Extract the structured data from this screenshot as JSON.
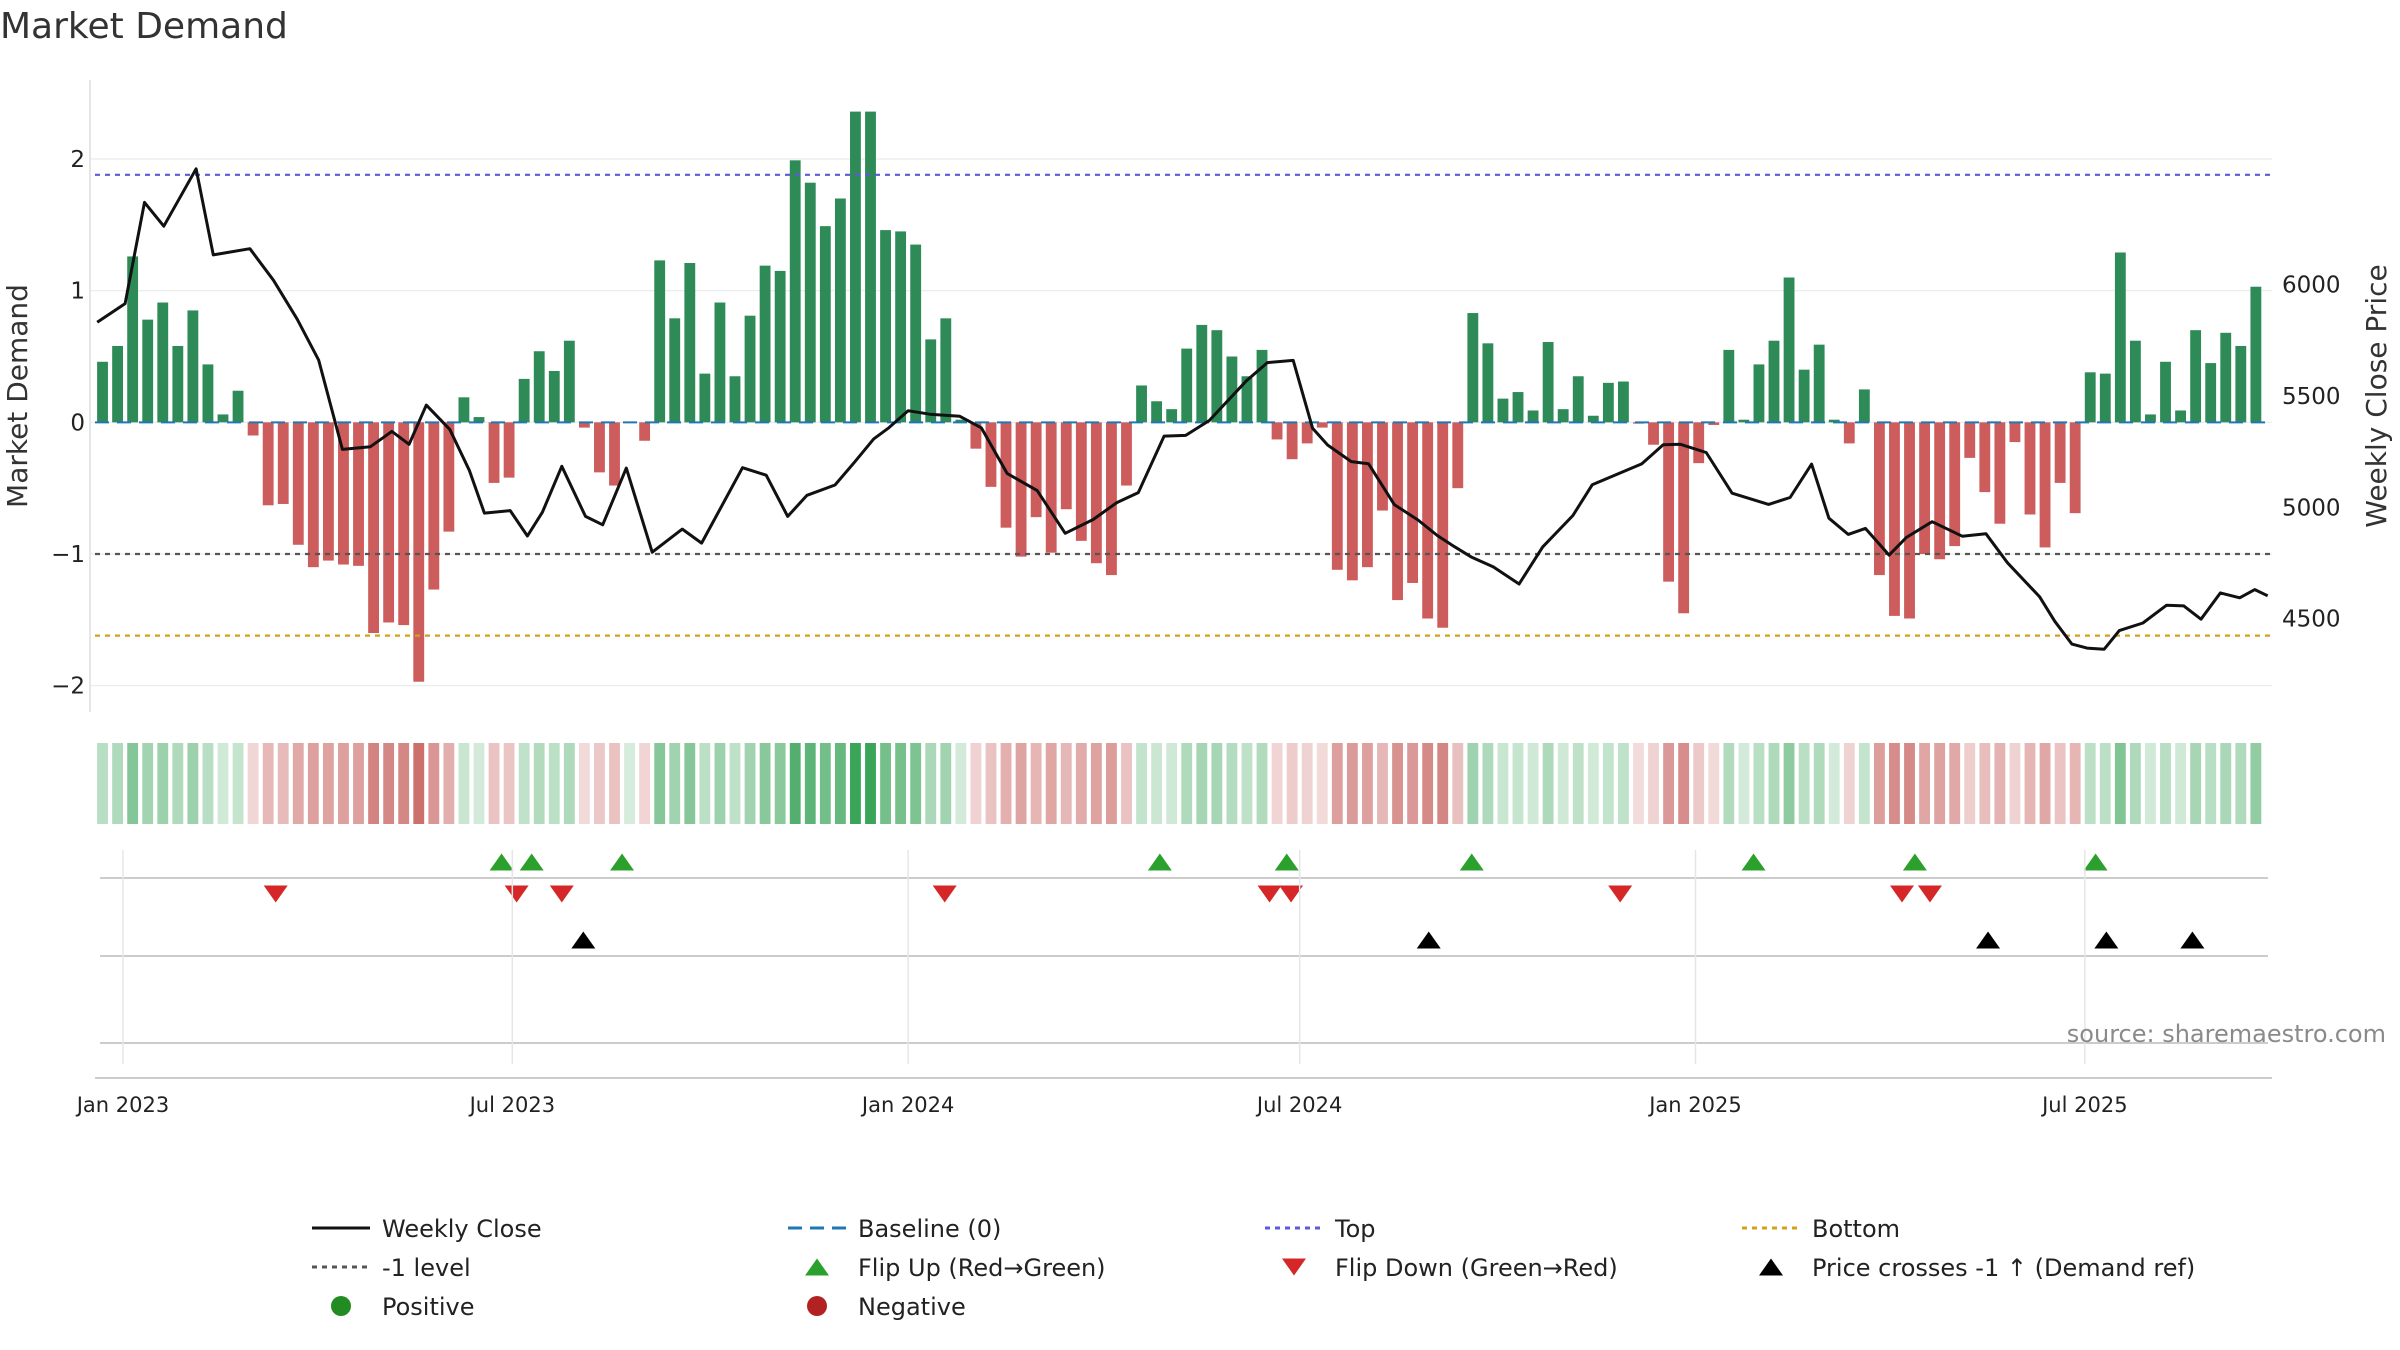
{
  "chart_data": {
    "type": "bar+line",
    "title": "Market Demand",
    "ylabel_left": "Market Demand",
    "ylabel_right": "Weekly Close Price",
    "left_ylim": [
      -2.2,
      2.6
    ],
    "left_yticks": [
      -2,
      -1,
      0,
      1,
      2
    ],
    "left_ytick_labels": [
      "−2",
      "−1",
      "0",
      "1",
      "2"
    ],
    "right_ylim": [
      4080,
      6920
    ],
    "right_yticks": [
      4500,
      5000,
      5500,
      6000
    ],
    "right_ytick_labels": [
      "4500",
      "5000",
      "5500",
      "6000"
    ],
    "x_start": "2022-12-19",
    "x_end": "2025-09-26",
    "xtick_dates": [
      "2023-01-01",
      "2023-07-01",
      "2024-01-01",
      "2024-07-01",
      "2025-01-01",
      "2025-07-01"
    ],
    "xtick_labels": [
      "Jan 2023",
      "Jul 2023",
      "Jan 2024",
      "Jul 2024",
      "Jan 2025",
      "Jul 2025"
    ],
    "weeks_start": "2022-12-19",
    "demand_values": [
      0.46,
      0.58,
      1.26,
      0.78,
      0.91,
      0.58,
      0.85,
      0.44,
      0.06,
      0.24,
      -0.1,
      -0.63,
      -0.62,
      -0.93,
      -1.1,
      -1.05,
      -1.08,
      -1.09,
      -1.6,
      -1.52,
      -1.54,
      -1.97,
      -1.27,
      -0.83,
      0.19,
      0.04,
      -0.46,
      -0.42,
      0.33,
      0.54,
      0.39,
      0.62,
      -0.04,
      -0.38,
      -0.48,
      0.0,
      -0.14,
      1.23,
      0.79,
      1.21,
      0.37,
      0.91,
      0.35,
      0.81,
      1.19,
      1.15,
      1.99,
      1.82,
      1.49,
      1.7,
      2.36,
      2.36,
      1.46,
      1.45,
      1.35,
      0.63,
      0.79,
      0.02,
      -0.2,
      -0.49,
      -0.8,
      -1.02,
      -0.72,
      -0.99,
      -0.66,
      -0.9,
      -1.07,
      -1.16,
      -0.48,
      0.28,
      0.16,
      0.1,
      0.56,
      0.74,
      0.7,
      0.5,
      0.35,
      0.55,
      -0.13,
      -0.28,
      -0.16,
      -0.04,
      -1.12,
      -1.2,
      -1.1,
      -0.67,
      -1.35,
      -1.22,
      -1.49,
      -1.56,
      -0.5,
      0.83,
      0.6,
      0.18,
      0.23,
      0.09,
      0.61,
      0.1,
      0.35,
      0.05,
      0.3,
      0.31,
      -0.01,
      -0.17,
      -1.21,
      -1.45,
      -0.31,
      -0.02,
      0.55,
      0.02,
      0.44,
      0.62,
      1.1,
      0.4,
      0.59,
      0.02,
      -0.16,
      0.25,
      -1.16,
      -1.47,
      -1.49,
      -1.0,
      -1.04,
      -0.94,
      -0.27,
      -0.53,
      -0.77,
      -0.15,
      -0.7,
      -0.95,
      -0.46,
      -0.69,
      0.38,
      0.37,
      1.29,
      0.62,
      0.06,
      0.46,
      0.09,
      0.7,
      0.45,
      0.68,
      0.58,
      1.03
    ],
    "series": [
      {
        "name": "Market Demand",
        "kind": "bar",
        "values_ref": "demand_values"
      },
      {
        "name": "Weekly Close",
        "kind": "line",
        "axis": "right",
        "x_dates": [
          "2022-12-20",
          "2023-01-02",
          "2023-01-11",
          "2023-01-20",
          "2023-02-04",
          "2023-02-12",
          "2023-03-01",
          "2023-03-12",
          "2023-03-23",
          "2023-04-02",
          "2023-04-13",
          "2023-04-26",
          "2023-05-06",
          "2023-05-14",
          "2023-05-22",
          "2023-06-02",
          "2023-06-11",
          "2023-06-18",
          "2023-06-30",
          "2023-07-08",
          "2023-07-15",
          "2023-07-24",
          "2023-08-04",
          "2023-08-12",
          "2023-08-23",
          "2023-09-04",
          "2023-09-18",
          "2023-09-27",
          "2023-10-16",
          "2023-10-27",
          "2023-11-06",
          "2023-11-15",
          "2023-11-28",
          "2023-12-07",
          "2023-12-16",
          "2023-12-23",
          "2024-01-01",
          "2024-01-11",
          "2024-01-25",
          "2024-02-04",
          "2024-02-16",
          "2024-03-01",
          "2024-03-14",
          "2024-03-27",
          "2024-04-07",
          "2024-04-17",
          "2024-04-29",
          "2024-05-09",
          "2024-05-20",
          "2024-06-06",
          "2024-06-16",
          "2024-06-28",
          "2024-07-07",
          "2024-07-14",
          "2024-07-25",
          "2024-08-02",
          "2024-08-14",
          "2024-08-25",
          "2024-09-03",
          "2024-09-11",
          "2024-09-19",
          "2024-09-29",
          "2024-10-11",
          "2024-10-22",
          "2024-11-05",
          "2024-11-14",
          "2024-11-25",
          "2024-12-07",
          "2024-12-17",
          "2024-12-25",
          "2025-01-06",
          "2025-01-18",
          "2025-02-04",
          "2025-02-14",
          "2025-02-24",
          "2025-03-04",
          "2025-03-13",
          "2025-03-21",
          "2025-04-01",
          "2025-04-09",
          "2025-04-21",
          "2025-05-05",
          "2025-05-16",
          "2025-05-26",
          "2025-06-10",
          "2025-06-17",
          "2025-06-25",
          "2025-07-02",
          "2025-07-10",
          "2025-07-17",
          "2025-07-28",
          "2025-08-08",
          "2025-08-16",
          "2025-08-24",
          "2025-09-02",
          "2025-09-11",
          "2025-09-18",
          "2025-09-24"
        ],
        "values": [
          5831,
          5915,
          6370,
          6263,
          6521,
          6134,
          6162,
          6020,
          5845,
          5661,
          5260,
          5272,
          5341,
          5283,
          5459,
          5349,
          5166,
          4974,
          4985,
          4871,
          4978,
          5184,
          4959,
          4921,
          5176,
          4798,
          4902,
          4839,
          5178,
          5144,
          4959,
          5054,
          5100,
          5202,
          5307,
          5357,
          5434,
          5418,
          5409,
          5357,
          5152,
          5075,
          4883,
          4945,
          5021,
          5066,
          5320,
          5323,
          5390,
          5566,
          5650,
          5660,
          5355,
          5280,
          5205,
          5196,
          5012,
          4943,
          4873,
          4823,
          4775,
          4732,
          4655,
          4822,
          4963,
          5101,
          5146,
          5195,
          5281,
          5283,
          5246,
          5063,
          5013,
          5044,
          5194,
          4951,
          4878,
          4905,
          4785,
          4864,
          4935,
          4870,
          4881,
          4751,
          4597,
          4488,
          4385,
          4367,
          4362,
          4446,
          4480,
          4560,
          4557,
          4497,
          4615,
          4593,
          4630,
          4602
        ]
      }
    ],
    "reference_lines": [
      {
        "name": "Baseline (0)",
        "axis": "left",
        "value": 0,
        "color": "#1f77b4",
        "style": "dashed"
      },
      {
        "name": "Top",
        "axis": "left",
        "value": 1.88,
        "color": "#5b5bd6",
        "style": "dotted"
      },
      {
        "name": "-1 level",
        "axis": "left",
        "value": -1,
        "color": "#555555",
        "style": "dotted"
      },
      {
        "name": "Bottom",
        "axis": "left",
        "value": -1.62,
        "color": "#d4a017",
        "style": "dotted"
      }
    ],
    "flip_up_dates": [
      "2023-06-26",
      "2023-07-10",
      "2023-08-21",
      "2024-04-27",
      "2024-06-25",
      "2024-09-19",
      "2025-01-28",
      "2025-04-13",
      "2025-07-06"
    ],
    "flip_down_dates": [
      "2023-03-13",
      "2023-07-03",
      "2023-07-24",
      "2024-01-18",
      "2024-06-17",
      "2024-06-27",
      "2024-11-27",
      "2025-04-07",
      "2025-04-20"
    ],
    "price_cross_dates": [
      "2023-08-03",
      "2024-08-30",
      "2025-05-17",
      "2025-07-11",
      "2025-08-20"
    ],
    "legend": [
      {
        "label": "Weekly Close",
        "kind": "line-solid",
        "color": "#111111"
      },
      {
        "label": "Baseline (0)",
        "kind": "line-dashed",
        "color": "#1f77b4"
      },
      {
        "label": "Top",
        "kind": "line-dotted",
        "color": "#5b5bd6"
      },
      {
        "label": "Bottom",
        "kind": "line-dotted",
        "color": "#d4a017"
      },
      {
        "label": "-1 level",
        "kind": "line-dotted",
        "color": "#555555"
      },
      {
        "label": "Flip Up (Red→Green)",
        "kind": "triangle-up",
        "color": "#2ca02c"
      },
      {
        "label": "Flip Down (Green→Red)",
        "kind": "triangle-down",
        "color": "#d62728"
      },
      {
        "label": "Price crosses -1 ↑ (Demand ref)",
        "kind": "triangle-up",
        "color": "#000000"
      },
      {
        "label": "Positive",
        "kind": "circle",
        "color": "#228b22"
      },
      {
        "label": "Negative",
        "kind": "circle",
        "color": "#b22222"
      }
    ]
  },
  "colors": {
    "positive_bar": "#2e8b57",
    "negative_bar": "#cd5c5c",
    "price_line": "#111111",
    "heat_positive": "#2e9e4f",
    "heat_negative": "#c0504d",
    "flip_up": "#2ca02c",
    "flip_down": "#d62728",
    "price_cross": "#000000"
  },
  "source": "source: sharemaestro.com"
}
